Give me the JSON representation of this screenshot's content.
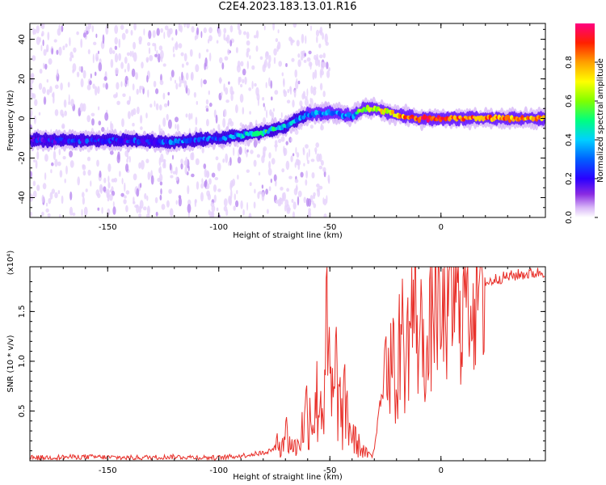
{
  "title": "C2E4.2023.183.13.01.R16",
  "colors": {
    "snr_line": "#e8302a",
    "axis": "#000000",
    "colormap": [
      "#ffffff",
      "#cfa8f5",
      "#9a4cf0",
      "#6a00e6",
      "#2a00ff",
      "#0060ff",
      "#00d0ff",
      "#00ff80",
      "#80ff00",
      "#ffff00",
      "#ffa000",
      "#ff2000",
      "#ff0080"
    ]
  },
  "chart_data": [
    {
      "type": "heatmap",
      "name": "spectrogram",
      "xlabel": "Height of straight line (km)",
      "ylabel": "Frequency (Hz)",
      "xlim": [
        -185,
        47
      ],
      "ylim": [
        -50,
        48
      ],
      "xticks": [
        -150,
        -100,
        -50,
        0
      ],
      "yticks": [
        40,
        20,
        0,
        -20,
        -40
      ],
      "colorbar": {
        "label": "Normalized spectral amplitude",
        "range": [
          0,
          1
        ],
        "ticks": [
          "0.0",
          "0.2",
          "0.4",
          "0.6",
          "0.8"
        ]
      },
      "ridge": {
        "x": [
          -185,
          -160,
          -140,
          -120,
          -100,
          -80,
          -70,
          -60,
          -50,
          -40,
          -35,
          -30,
          -20,
          -10,
          0,
          20,
          47
        ],
        "freq": [
          -11,
          -11,
          -11,
          -12,
          -10,
          -7,
          -4,
          2,
          3,
          1,
          5,
          5,
          2,
          0,
          0,
          0,
          0
        ],
        "amplitude": [
          0.3,
          0.35,
          0.35,
          0.4,
          0.4,
          0.55,
          0.5,
          0.4,
          0.45,
          0.4,
          0.7,
          0.7,
          0.8,
          0.9,
          0.9,
          0.85,
          0.8
        ]
      }
    },
    {
      "type": "line",
      "name": "snr",
      "xlabel": "Height of straight line (km)",
      "ylabel": "SNR (10 * v/v)",
      "y_multiplier": "(x10⁴)",
      "xlim": [
        -185,
        47
      ],
      "ylim": [
        0,
        1.95
      ],
      "xticks": [
        -150,
        -100,
        -50,
        0
      ],
      "yticks": [
        0.5,
        1.0,
        1.5
      ],
      "series": [
        {
          "x": [
            -185,
            -160,
            -140,
            -120,
            -100,
            -90,
            -80,
            -75,
            -72,
            -70,
            -68,
            -65,
            -62,
            -60,
            -57,
            -55,
            -53,
            -52,
            -50,
            -48,
            -47,
            -45,
            -43,
            -40,
            -38,
            -35,
            -33,
            -31,
            -30,
            -29,
            -28,
            -26,
            -25,
            -24,
            -22,
            -20,
            -18,
            -16,
            -15,
            -13,
            -11,
            -10,
            -8,
            -6,
            -4,
            -2,
            0,
            2,
            4,
            6,
            8,
            10,
            12,
            14,
            16,
            20,
            25,
            30,
            35,
            40,
            47
          ],
          "y": [
            0.03,
            0.04,
            0.03,
            0.04,
            0.03,
            0.05,
            0.08,
            0.12,
            0.2,
            0.3,
            0.18,
            0.12,
            0.35,
            0.55,
            0.45,
            0.7,
            0.5,
            1.27,
            0.75,
            0.5,
            1.0,
            0.4,
            0.55,
            0.25,
            0.18,
            0.1,
            0.06,
            0.04,
            0.15,
            0.3,
            0.55,
            0.7,
            1.3,
            0.9,
            1.1,
            0.6,
            1.45,
            0.9,
            1.2,
            1.5,
            1.55,
            1.1,
            1.4,
            0.9,
            1.58,
            1.75,
            1.2,
            1.65,
            1.5,
            1.7,
            1.6,
            1.62,
            1.95,
            1.7,
            1.8,
            1.78,
            1.83,
            1.85,
            1.87,
            1.88,
            1.9
          ]
        }
      ]
    }
  ]
}
